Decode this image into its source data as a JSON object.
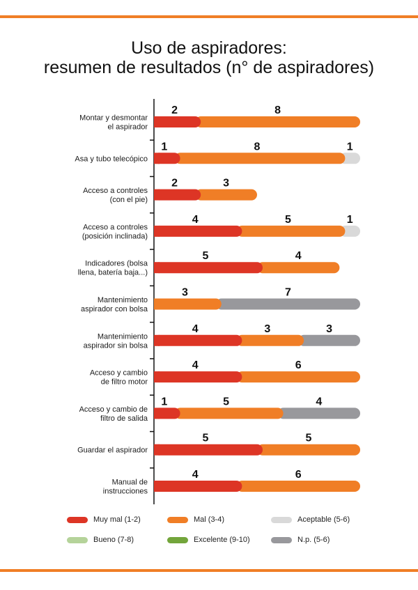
{
  "title_line1": "Uso de aspiradores:",
  "title_line2": "resumen de resultados (n° de aspiradores)",
  "colors": {
    "muy_mal": "#dd3525",
    "mal": "#f07e26",
    "aceptable": "#d9d9d9",
    "bueno": "#b5d39a",
    "excelente": "#73a53b",
    "np": "#98989c",
    "accent_rule": "#f07e26"
  },
  "legend": [
    {
      "label": "Muy mal (1-2)",
      "color": "#dd3525"
    },
    {
      "label": "Mal (3-4)",
      "color": "#f07e26"
    },
    {
      "label": "Aceptable (5-6)",
      "color": "#d9d9d9"
    },
    {
      "label": "Bueno (7-8)",
      "color": "#b5d39a"
    },
    {
      "label": "Excelente (9-10)",
      "color": "#73a53b"
    },
    {
      "label": "N.p. (5-6)",
      "color": "#98989c"
    }
  ],
  "chart_data": {
    "type": "bar",
    "orientation": "horizontal",
    "stacked": true,
    "title": "Uso de aspiradores: resumen de resultados (n° de aspiradores)",
    "xlim": [
      0,
      10
    ],
    "categories": [
      [
        "Montar y desmontar",
        "el aspirador"
      ],
      [
        "Asa y tubo telecópico"
      ],
      [
        "Acceso a controles",
        "(con el pie)"
      ],
      [
        "Acceso a controles",
        "(posición inclinada)"
      ],
      [
        "Indicadores (bolsa",
        "llena, batería baja...)"
      ],
      [
        "Mantenimiento",
        "aspirador con bolsa"
      ],
      [
        "Mantenimiento",
        "aspirador sin bolsa"
      ],
      [
        "Acceso y cambio",
        "de filtro motor"
      ],
      [
        "Acceso y cambio de",
        "filtro de salida"
      ],
      [
        "Guardar el aspirador"
      ],
      [
        "Manual de",
        "instrucciones"
      ]
    ],
    "series": [
      {
        "name": "Muy mal (1-2)",
        "color": "#dd3525",
        "values": [
          2,
          1,
          2,
          4,
          5,
          0,
          4,
          4,
          1,
          5,
          4
        ]
      },
      {
        "name": "Mal (3-4)",
        "color": "#f07e26",
        "values": [
          8,
          8,
          3,
          5,
          4,
          3,
          3,
          6,
          5,
          5,
          6
        ]
      },
      {
        "name": "Aceptable (5-6)",
        "color": "#d9d9d9",
        "values": [
          0,
          1,
          0,
          1,
          0,
          0,
          0,
          0,
          0,
          0,
          0
        ]
      },
      {
        "name": "Bueno (7-8)",
        "color": "#b5d39a",
        "values": [
          0,
          0,
          0,
          0,
          0,
          0,
          0,
          0,
          0,
          0,
          0
        ]
      },
      {
        "name": "Excelente (9-10)",
        "color": "#73a53b",
        "values": [
          0,
          0,
          0,
          0,
          0,
          0,
          0,
          0,
          0,
          0,
          0
        ]
      },
      {
        "name": "N.p. (5-6)",
        "color": "#98989c",
        "values": [
          0,
          0,
          0,
          0,
          0,
          7,
          3,
          0,
          4,
          0,
          0
        ]
      }
    ],
    "grid": false,
    "legend_position": "bottom"
  }
}
